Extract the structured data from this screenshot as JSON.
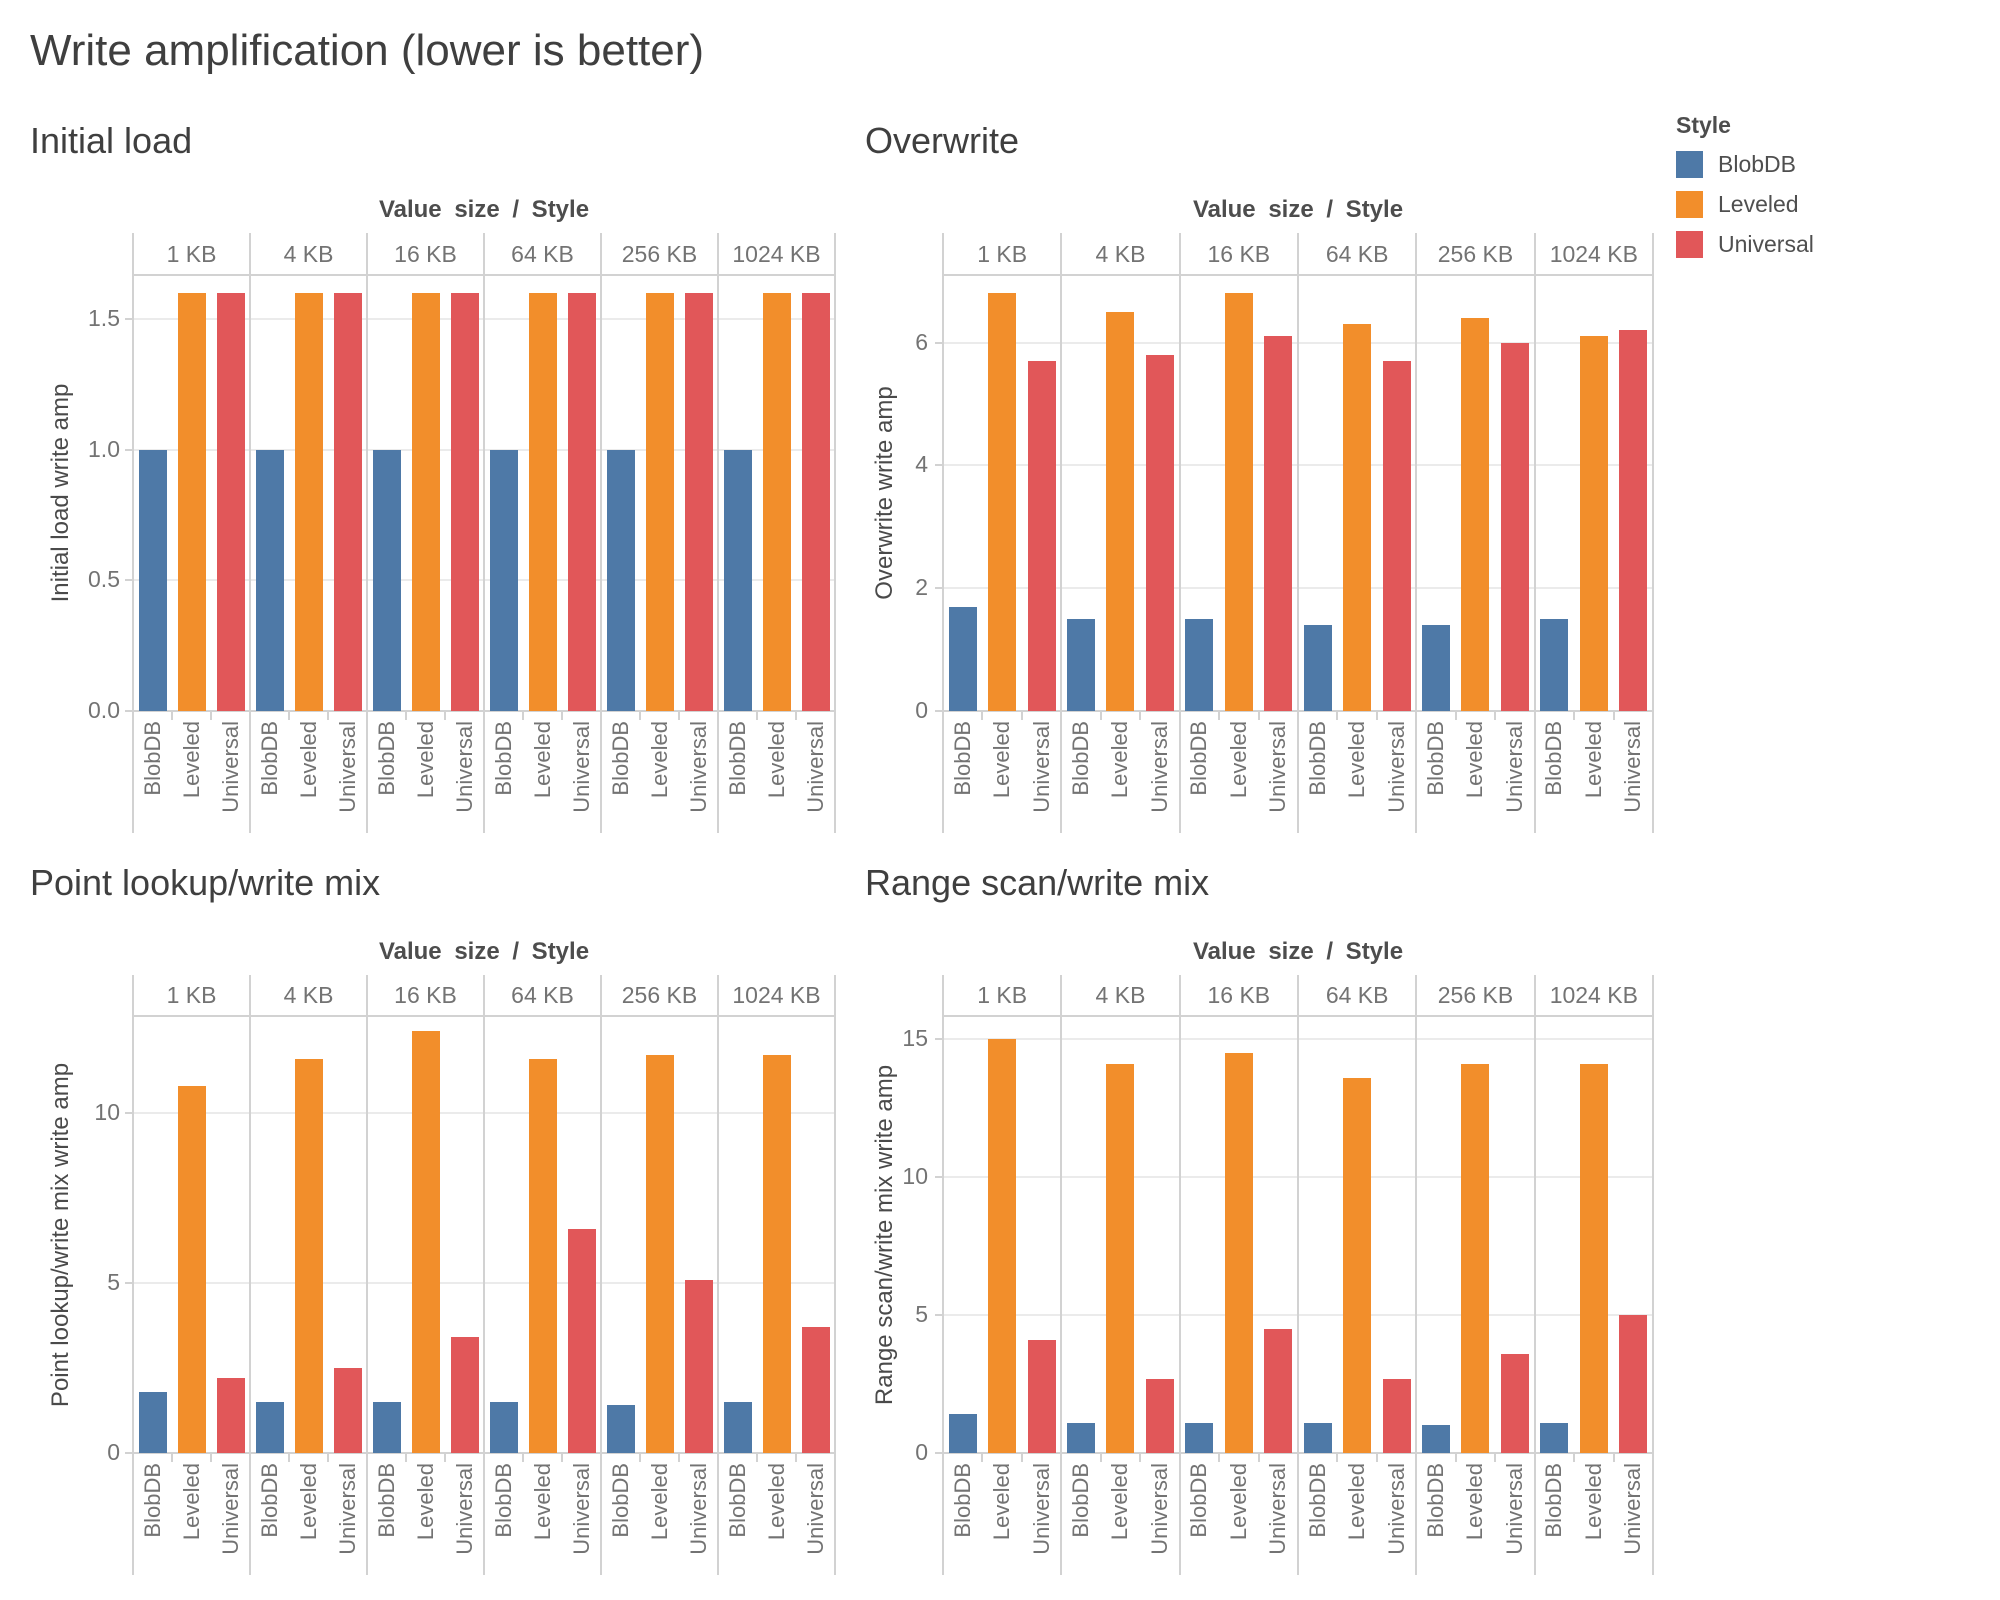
{
  "page_title": "Write amplification (lower is better)",
  "legend": {
    "title": "Style",
    "items": [
      {
        "label": "BlobDB",
        "color": "#4e79a7"
      },
      {
        "label": "Leveled",
        "color": "#f28e2b"
      },
      {
        "label": "Universal",
        "color": "#e15759"
      }
    ]
  },
  "colors": {
    "blobdb": "#4e79a7",
    "leveled": "#f28e2b",
    "universal": "#e15759",
    "gridline": "#ebebeb",
    "axis_line": "#d2d2d2",
    "text_muted": "#737373",
    "text_dark": "#3f3f3f"
  },
  "chart_data": [
    {
      "id": "initial-load",
      "type": "bar",
      "title": "Initial load",
      "column_header": "Value size / Style",
      "ylabel": "Initial load write amp",
      "ylim": [
        0,
        1.67
      ],
      "grid": true,
      "legend_position": "top-right",
      "yticks": [
        {
          "value": 0.0,
          "label": "0.0"
        },
        {
          "value": 0.5,
          "label": "0.5"
        },
        {
          "value": 1.0,
          "label": "1.0"
        },
        {
          "value": 1.5,
          "label": "1.5"
        }
      ],
      "categories": [
        "1 KB",
        "4 KB",
        "16 KB",
        "64 KB",
        "256 KB",
        "1024 KB"
      ],
      "series": [
        {
          "name": "BlobDB",
          "color": "#4e79a7",
          "values": [
            1.0,
            1.0,
            1.0,
            1.0,
            1.0,
            1.0
          ]
        },
        {
          "name": "Leveled",
          "color": "#f28e2b",
          "values": [
            1.6,
            1.6,
            1.6,
            1.6,
            1.6,
            1.6
          ]
        },
        {
          "name": "Universal",
          "color": "#e15759",
          "values": [
            1.6,
            1.6,
            1.6,
            1.6,
            1.6,
            1.6
          ]
        }
      ]
    },
    {
      "id": "overwrite",
      "type": "bar",
      "title": "Overwrite",
      "column_header": "Value size / Style",
      "ylabel": "Overwrite write amp",
      "ylim": [
        0,
        7.1
      ],
      "grid": true,
      "yticks": [
        {
          "value": 0,
          "label": "0"
        },
        {
          "value": 2,
          "label": "2"
        },
        {
          "value": 4,
          "label": "4"
        },
        {
          "value": 6,
          "label": "6"
        }
      ],
      "categories": [
        "1 KB",
        "4 KB",
        "16 KB",
        "64 KB",
        "256 KB",
        "1024 KB"
      ],
      "series": [
        {
          "name": "BlobDB",
          "color": "#4e79a7",
          "values": [
            1.7,
            1.5,
            1.5,
            1.4,
            1.4,
            1.5
          ]
        },
        {
          "name": "Leveled",
          "color": "#f28e2b",
          "values": [
            6.8,
            6.5,
            6.8,
            6.3,
            6.4,
            6.1
          ]
        },
        {
          "name": "Universal",
          "color": "#e15759",
          "values": [
            5.7,
            5.8,
            6.1,
            5.7,
            6.0,
            6.2
          ]
        }
      ]
    },
    {
      "id": "point-lookup-write-mix",
      "type": "bar",
      "title": "Point lookup/write mix",
      "column_header": "Value size / Style",
      "ylabel": "Point lookup/write mix write amp",
      "ylim": [
        0,
        12.85
      ],
      "grid": true,
      "yticks": [
        {
          "value": 0,
          "label": "0"
        },
        {
          "value": 5,
          "label": "5"
        },
        {
          "value": 10,
          "label": "10"
        }
      ],
      "categories": [
        "1 KB",
        "4 KB",
        "16 KB",
        "64 KB",
        "256 KB",
        "1024 KB"
      ],
      "series": [
        {
          "name": "BlobDB",
          "color": "#4e79a7",
          "values": [
            1.8,
            1.5,
            1.5,
            1.5,
            1.4,
            1.5
          ]
        },
        {
          "name": "Leveled",
          "color": "#f28e2b",
          "values": [
            10.8,
            11.6,
            12.4,
            11.6,
            11.7,
            11.7
          ]
        },
        {
          "name": "Universal",
          "color": "#e15759",
          "values": [
            2.2,
            2.5,
            3.4,
            6.6,
            5.1,
            3.7
          ]
        }
      ]
    },
    {
      "id": "range-scan-write-mix",
      "type": "bar",
      "title": "Range scan/write mix",
      "column_header": "Value size / Style",
      "ylabel": "Range scan/write mix write amp",
      "ylim": [
        0,
        15.85
      ],
      "grid": true,
      "yticks": [
        {
          "value": 0,
          "label": "0"
        },
        {
          "value": 5,
          "label": "5"
        },
        {
          "value": 10,
          "label": "10"
        },
        {
          "value": 15,
          "label": "15"
        }
      ],
      "categories": [
        "1 KB",
        "4 KB",
        "16 KB",
        "64 KB",
        "256 KB",
        "1024 KB"
      ],
      "series": [
        {
          "name": "BlobDB",
          "color": "#4e79a7",
          "values": [
            1.4,
            1.1,
            1.1,
            1.1,
            1.0,
            1.1
          ]
        },
        {
          "name": "Leveled",
          "color": "#f28e2b",
          "values": [
            15.0,
            14.1,
            14.5,
            13.6,
            14.1,
            14.1
          ]
        },
        {
          "name": "Universal",
          "color": "#e15759",
          "values": [
            4.1,
            2.7,
            4.5,
            2.7,
            3.6,
            5.0
          ]
        }
      ]
    }
  ]
}
